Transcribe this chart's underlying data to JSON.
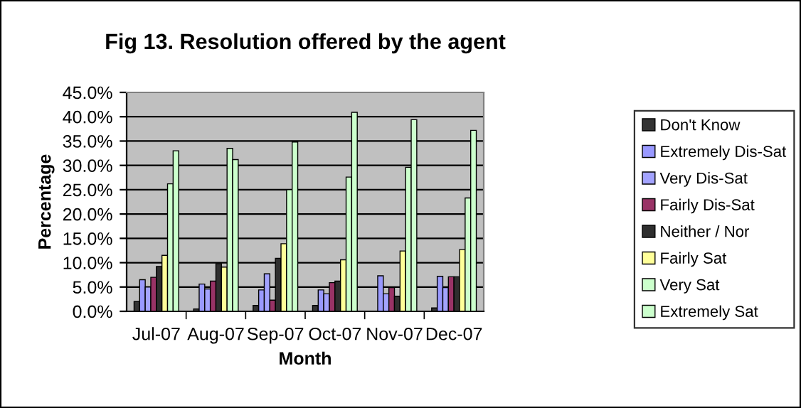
{
  "chart_data": {
    "type": "bar",
    "title": "Fig 13. Resolution offered by the agent",
    "xlabel": "Month",
    "ylabel": "Percentage",
    "categories": [
      "Jul-07",
      "Aug-07",
      "Sep-07",
      "Oct-07",
      "Nov-07",
      "Dec-07"
    ],
    "series": [
      {
        "name": "Don't Know",
        "color": "#333333",
        "values": [
          2.0,
          0.5,
          1.2,
          1.2,
          0,
          0.7
        ]
      },
      {
        "name": "Extremely Dis-Sat",
        "color": "#9999ff",
        "values": [
          6.5,
          5.6,
          4.4,
          4.4,
          7.3,
          7.2
        ]
      },
      {
        "name": "Very Dis-Sat",
        "color": "#a3a3ff",
        "values": [
          5.0,
          4.6,
          7.7,
          3.6,
          3.6,
          4.9
        ]
      },
      {
        "name": "Fairly Dis-Sat",
        "color": "#993366",
        "values": [
          7.0,
          6.2,
          2.3,
          5.9,
          4.9,
          7.1
        ]
      },
      {
        "name": "Neither / Nor",
        "color": "#2e2e2e",
        "values": [
          9.2,
          9.8,
          10.9,
          6.2,
          3.1,
          7.1
        ]
      },
      {
        "name": "Fairly Sat",
        "color": "#ffff99",
        "values": [
          11.5,
          9.1,
          13.9,
          10.6,
          12.4,
          12.7
        ]
      },
      {
        "name": "Very Sat",
        "color": "#ccffcc",
        "values": [
          26.2,
          33.5,
          25.0,
          27.6,
          29.6,
          23.3
        ]
      },
      {
        "name": "Extremely Sat",
        "color": "#ccffcd",
        "values": [
          33.0,
          31.2,
          34.8,
          40.9,
          39.4,
          37.2
        ]
      }
    ],
    "ylim": [
      0,
      45
    ],
    "yticks": [
      {
        "value": 0,
        "label": "0.0%"
      },
      {
        "value": 5,
        "label": "5.0%"
      },
      {
        "value": 10,
        "label": "10.0%"
      },
      {
        "value": 15,
        "label": "15.0%"
      },
      {
        "value": 20,
        "label": "20.0%"
      },
      {
        "value": 25,
        "label": "25.0%"
      },
      {
        "value": 30,
        "label": "30.0%"
      },
      {
        "value": 35,
        "label": "35.0%"
      },
      {
        "value": 40,
        "label": "40.0%"
      },
      {
        "value": 45,
        "label": "45.0%"
      }
    ],
    "grid": "y",
    "legend": "right"
  }
}
